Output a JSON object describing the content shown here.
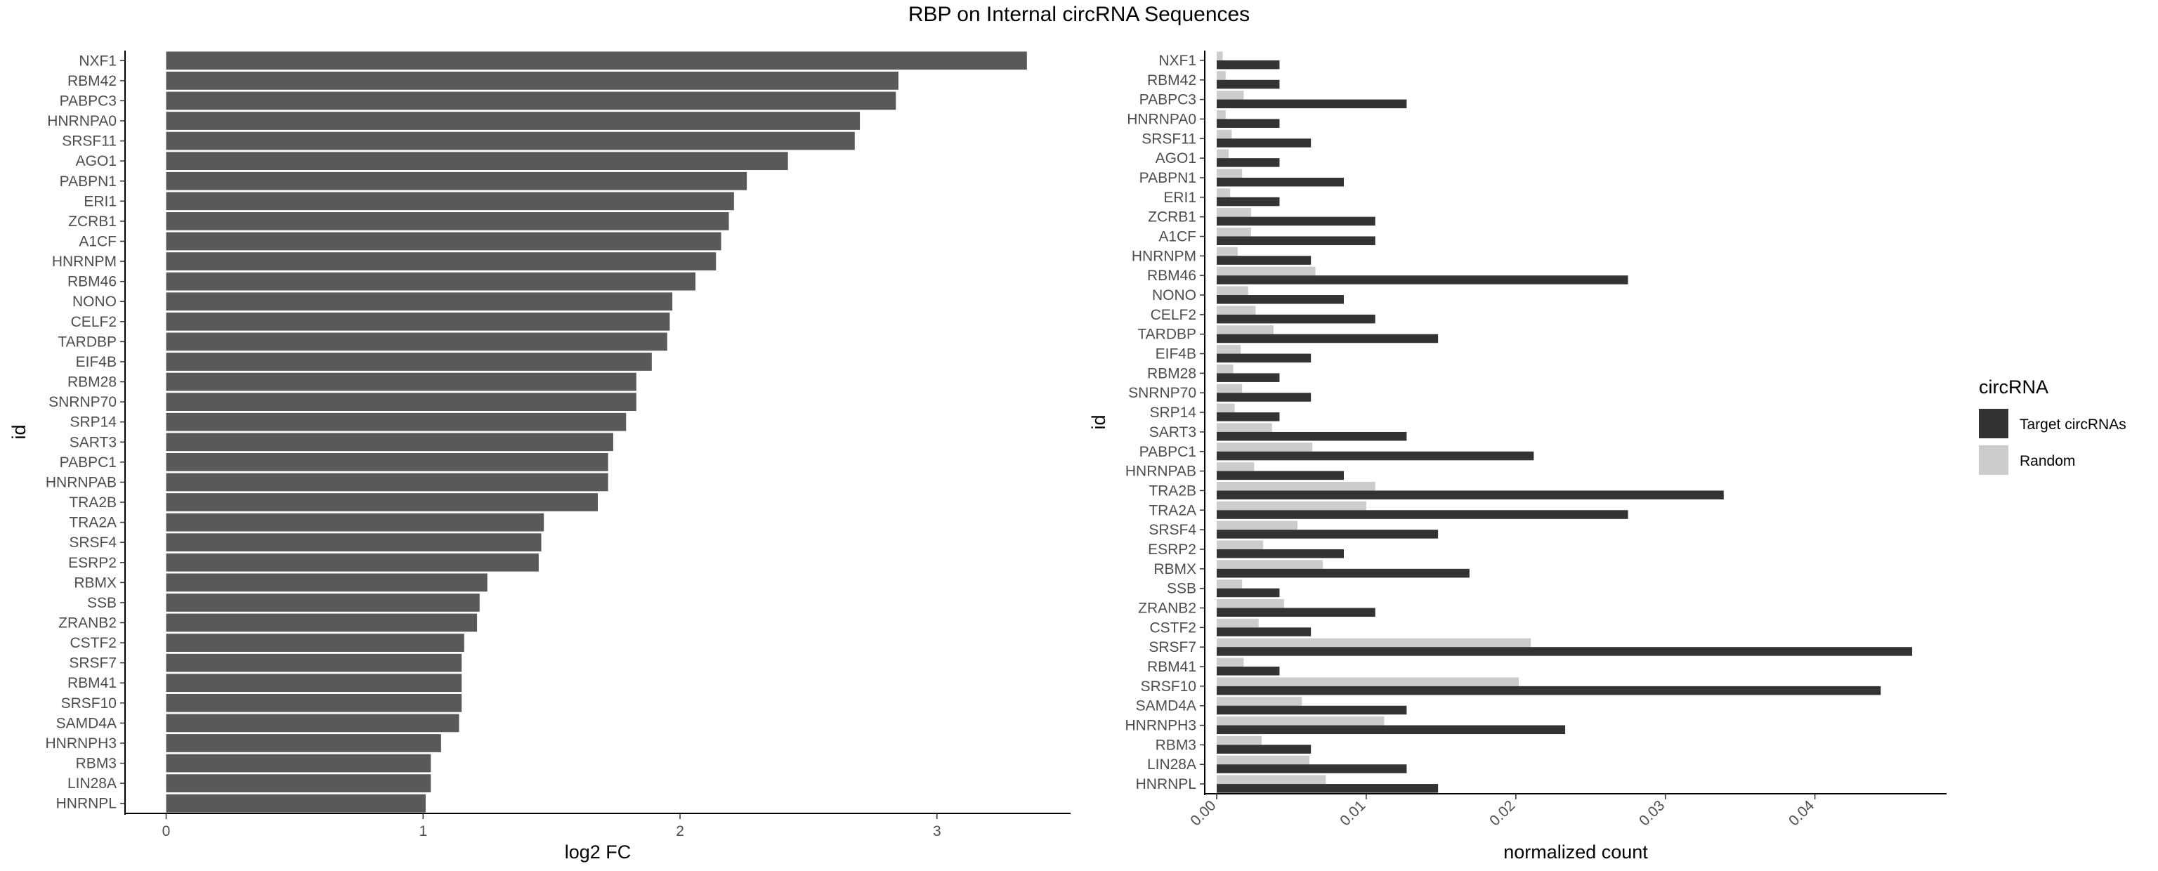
{
  "title": "RBP on Internal circRNA Sequences",
  "chart_data": [
    {
      "type": "bar",
      "orientation": "horizontal",
      "xlabel": "log2 FC",
      "ylabel": "id",
      "xlim": [
        -0.16,
        3.52
      ],
      "xticks": [
        "0",
        "1",
        "2",
        "3"
      ],
      "xtick_values": [
        0,
        1,
        2,
        3
      ],
      "bar_color": "#595959",
      "categories": [
        "NXF1",
        "RBM42",
        "PABPC3",
        "HNRNPA0",
        "SRSF11",
        "AGO1",
        "PABPN1",
        "ERI1",
        "ZCRB1",
        "A1CF",
        "HNRNPM",
        "RBM46",
        "NONO",
        "CELF2",
        "TARDBP",
        "EIF4B",
        "RBM28",
        "SNRNP70",
        "SRP14",
        "SART3",
        "PABPC1",
        "HNRNPAB",
        "TRA2B",
        "TRA2A",
        "SRSF4",
        "ESRP2",
        "RBMX",
        "SSB",
        "ZRANB2",
        "CSTF2",
        "SRSF7",
        "RBM41",
        "SRSF10",
        "SAMD4A",
        "HNRNPH3",
        "RBM3",
        "LIN28A",
        "HNRNPL"
      ],
      "values": [
        3.35,
        2.85,
        2.84,
        2.7,
        2.68,
        2.42,
        2.26,
        2.21,
        2.19,
        2.16,
        2.14,
        2.06,
        1.97,
        1.96,
        1.95,
        1.89,
        1.83,
        1.83,
        1.79,
        1.74,
        1.72,
        1.72,
        1.68,
        1.47,
        1.46,
        1.45,
        1.25,
        1.22,
        1.21,
        1.16,
        1.15,
        1.15,
        1.15,
        1.14,
        1.07,
        1.03,
        1.03,
        1.01
      ]
    },
    {
      "type": "bar",
      "orientation": "horizontal-grouped",
      "xlabel": "normalized count",
      "ylabel": "id",
      "xlim": [
        -0.0008,
        0.0488
      ],
      "xticks": [
        "0.00",
        "0.01",
        "0.02",
        "0.03",
        "0.04"
      ],
      "xtick_values": [
        0,
        0.01,
        0.02,
        0.03,
        0.04
      ],
      "legend": {
        "title": "circRNA",
        "position": "right"
      },
      "categories": [
        "NXF1",
        "RBM42",
        "PABPC3",
        "HNRNPA0",
        "SRSF11",
        "AGO1",
        "PABPN1",
        "ERI1",
        "ZCRB1",
        "A1CF",
        "HNRNPM",
        "RBM46",
        "NONO",
        "CELF2",
        "TARDBP",
        "EIF4B",
        "RBM28",
        "SNRNP70",
        "SRP14",
        "SART3",
        "PABPC1",
        "HNRNPAB",
        "TRA2B",
        "TRA2A",
        "SRSF4",
        "ESRP2",
        "RBMX",
        "SSB",
        "ZRANB2",
        "CSTF2",
        "SRSF7",
        "RBM41",
        "SRSF10",
        "SAMD4A",
        "HNRNPH3",
        "RBM3",
        "LIN28A",
        "HNRNPL"
      ],
      "series": [
        {
          "name": "Target circRNAs",
          "color": "#333333",
          "values": [
            0.0042,
            0.0042,
            0.0127,
            0.0042,
            0.0063,
            0.0042,
            0.0085,
            0.0042,
            0.0106,
            0.0106,
            0.0063,
            0.0275,
            0.0085,
            0.0106,
            0.0148,
            0.0063,
            0.0042,
            0.0063,
            0.0042,
            0.0127,
            0.0212,
            0.0085,
            0.0339,
            0.0275,
            0.0148,
            0.0085,
            0.0169,
            0.0042,
            0.0106,
            0.0063,
            0.0465,
            0.0042,
            0.0444,
            0.0127,
            0.0233,
            0.0063,
            0.0127,
            0.0148
          ]
        },
        {
          "name": "Random",
          "color": "#cccccc",
          "values": [
            0.0004,
            0.0006,
            0.0018,
            0.0006,
            0.001,
            0.0008,
            0.0017,
            0.0009,
            0.0023,
            0.0023,
            0.0014,
            0.0066,
            0.0021,
            0.0026,
            0.0038,
            0.0016,
            0.0011,
            0.0017,
            0.0012,
            0.0037,
            0.0064,
            0.0025,
            0.0106,
            0.01,
            0.0054,
            0.0031,
            0.0071,
            0.0017,
            0.0045,
            0.0028,
            0.021,
            0.0018,
            0.0202,
            0.0057,
            0.0112,
            0.003,
            0.0062,
            0.0073
          ]
        }
      ]
    }
  ]
}
